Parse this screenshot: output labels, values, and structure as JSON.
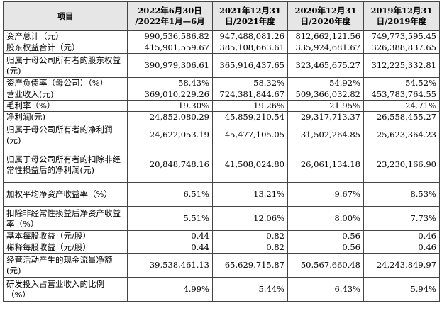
{
  "headers": {
    "item": "项目",
    "c1": [
      "2022年6月30日",
      "/2022年1月—6月"
    ],
    "c2": [
      "2021年12月31",
      "日/2021年度"
    ],
    "c3": [
      "2020年12月31",
      "日/2020年度"
    ],
    "c4": [
      "2019年12月31",
      "日/2019年度"
    ]
  },
  "rows": [
    {
      "label": "资产总计（元）",
      "v": [
        "990,536,586.82",
        "947,488,081.26",
        "812,662,121.56",
        "749,773,595.45"
      ]
    },
    {
      "label": "股东权益合计（元）",
      "v": [
        "415,901,559.67",
        "385,108,663.61",
        "335,924,681.67",
        "326,388,837.65"
      ]
    },
    {
      "label": "归属于母公司所有者的股东权益(元)",
      "v": [
        "390,979,306.61",
        "365,916,437.65",
        "323,465,675.27",
        "312,225,332.81"
      ]
    },
    {
      "label": "资产负债率（母公司）（%）",
      "v": [
        "58.43%",
        "58.32%",
        "54.92%",
        "54.52%"
      ]
    },
    {
      "label": "营业收入(元)",
      "v": [
        "369,010,229.26",
        "724,381,844.67",
        "509,366,032.82",
        "453,783,764.55"
      ]
    },
    {
      "label": "毛利率（%）",
      "v": [
        "19.30%",
        "19.26%",
        "21.95%",
        "24.71%"
      ]
    },
    {
      "label": "净利润(元)",
      "v": [
        "24,852,080.29",
        "45,859,210.54",
        "29,317,713.37",
        "26,558,455.27"
      ]
    },
    {
      "label": "归属于母公司所有者的净利润(元)",
      "v": [
        "24,622,053.19",
        "45,477,105.05",
        "31,502,264.85",
        "25,623,364.23"
      ]
    },
    {
      "label": "归属于母公司所有者的扣除非经常性损益后的净利润(元)",
      "v": [
        "20,848,748.16",
        "41,508,024.80",
        "26,061,134.18",
        "23,230,166.90"
      ]
    },
    {
      "label": "加权平均净资产收益率（%）",
      "v": [
        "6.51%",
        "13.21%",
        "9.67%",
        "8.53%"
      ]
    },
    {
      "label": "扣除非经常性损益后净资产收益率（%）",
      "v": [
        "5.51%",
        "12.06%",
        "8.00%",
        "7.73%"
      ]
    },
    {
      "label": "基本每股收益（元/股）",
      "v": [
        "0.44",
        "0.82",
        "0.56",
        "0.46"
      ]
    },
    {
      "label": "稀释每股收益（元/股）",
      "v": [
        "0.44",
        "0.82",
        "0.56",
        "0.46"
      ]
    },
    {
      "label": "经营活动产生的现金流量净额(元)",
      "v": [
        "39,538,461.13",
        "65,629,715.87",
        "50,567,660.48",
        "24,243,849.97"
      ]
    },
    {
      "label": "研发投入占营业收入的比例（%）",
      "v": [
        "4.99%",
        "5.44%",
        "6.43%",
        "5.94%"
      ]
    }
  ]
}
